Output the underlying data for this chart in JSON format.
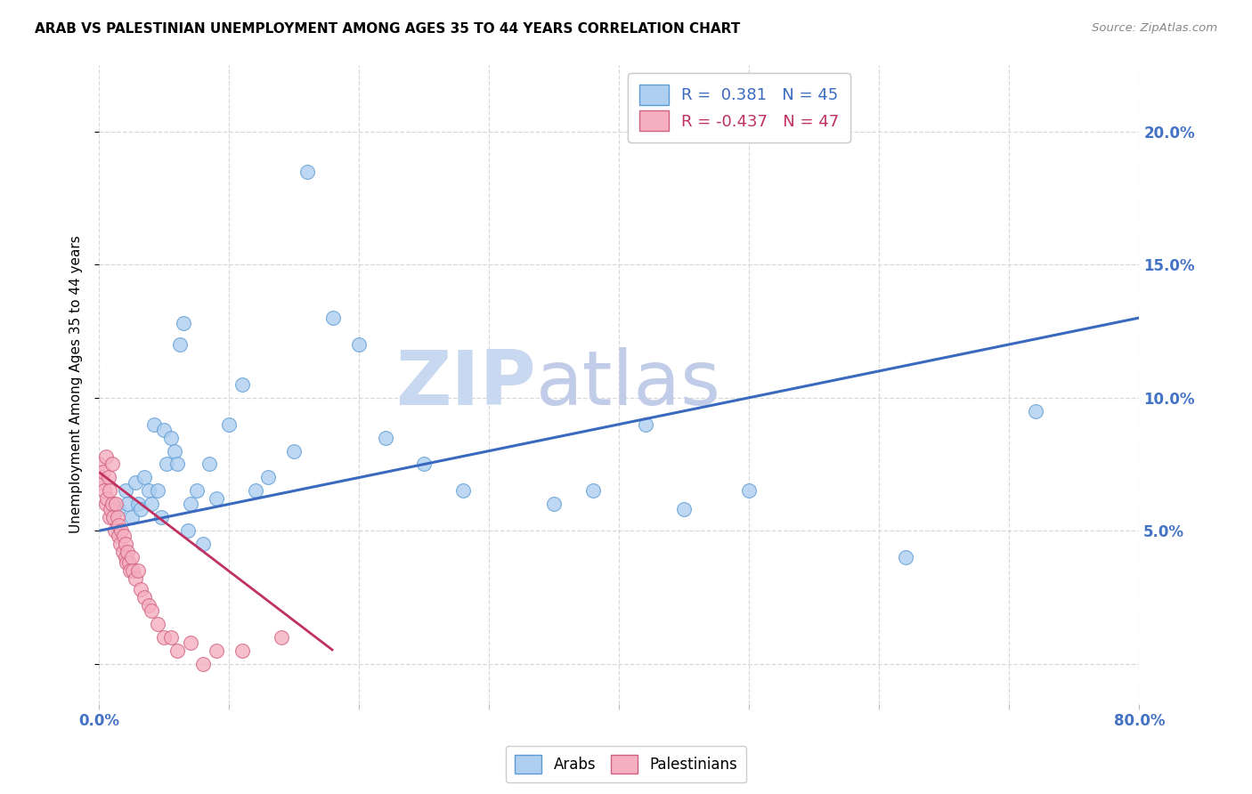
{
  "title": "ARAB VS PALESTINIAN UNEMPLOYMENT AMONG AGES 35 TO 44 YEARS CORRELATION CHART",
  "source": "Source: ZipAtlas.com",
  "ylabel": "Unemployment Among Ages 35 to 44 years",
  "legend_arab": "Arabs",
  "legend_pal": "Palestinians",
  "r_arab": 0.381,
  "n_arab": 45,
  "r_pal": -0.437,
  "n_pal": 47,
  "xlim": [
    0.0,
    0.8
  ],
  "ylim": [
    -0.015,
    0.225
  ],
  "arab_color": "#aecff0",
  "pal_color": "#f5afc0",
  "arab_edge_color": "#5b9bd5",
  "pal_edge_color": "#d06080",
  "arab_line_color": "#3a6abf",
  "pal_line_color": "#c03060",
  "watermark_zip": "ZIP",
  "watermark_atlas": "atlas",
  "background": "#ffffff",
  "grid_color": "#d8d8d8",
  "right_tick_color": "#4472c4",
  "arab_x": [
    0.01,
    0.015,
    0.02,
    0.022,
    0.025,
    0.028,
    0.03,
    0.032,
    0.035,
    0.038,
    0.04,
    0.042,
    0.045,
    0.048,
    0.05,
    0.052,
    0.055,
    0.058,
    0.06,
    0.062,
    0.065,
    0.068,
    0.07,
    0.075,
    0.08,
    0.085,
    0.09,
    0.1,
    0.11,
    0.12,
    0.13,
    0.15,
    0.16,
    0.18,
    0.2,
    0.22,
    0.25,
    0.28,
    0.35,
    0.38,
    0.42,
    0.45,
    0.5,
    0.62,
    0.72
  ],
  "arab_y": [
    0.06,
    0.058,
    0.065,
    0.06,
    0.055,
    0.068,
    0.06,
    0.058,
    0.07,
    0.065,
    0.06,
    0.09,
    0.065,
    0.055,
    0.088,
    0.075,
    0.085,
    0.08,
    0.075,
    0.12,
    0.128,
    0.05,
    0.06,
    0.065,
    0.045,
    0.075,
    0.062,
    0.09,
    0.105,
    0.065,
    0.07,
    0.08,
    0.185,
    0.13,
    0.12,
    0.085,
    0.075,
    0.065,
    0.06,
    0.065,
    0.09,
    0.058,
    0.065,
    0.04,
    0.095
  ],
  "pal_x": [
    0.0,
    0.001,
    0.002,
    0.003,
    0.004,
    0.005,
    0.005,
    0.006,
    0.007,
    0.008,
    0.008,
    0.009,
    0.01,
    0.01,
    0.011,
    0.012,
    0.013,
    0.014,
    0.015,
    0.015,
    0.016,
    0.017,
    0.018,
    0.019,
    0.02,
    0.02,
    0.021,
    0.022,
    0.023,
    0.024,
    0.025,
    0.026,
    0.028,
    0.03,
    0.032,
    0.035,
    0.038,
    0.04,
    0.045,
    0.05,
    0.055,
    0.06,
    0.07,
    0.08,
    0.09,
    0.11,
    0.14
  ],
  "pal_y": [
    0.075,
    0.07,
    0.068,
    0.072,
    0.065,
    0.078,
    0.06,
    0.062,
    0.07,
    0.055,
    0.065,
    0.058,
    0.075,
    0.06,
    0.055,
    0.05,
    0.06,
    0.055,
    0.052,
    0.048,
    0.045,
    0.05,
    0.042,
    0.048,
    0.045,
    0.04,
    0.038,
    0.042,
    0.038,
    0.035,
    0.04,
    0.035,
    0.032,
    0.035,
    0.028,
    0.025,
    0.022,
    0.02,
    0.015,
    0.01,
    0.01,
    0.005,
    0.008,
    0.0,
    0.005,
    0.005,
    0.01
  ],
  "arab_line_x0": 0.0,
  "arab_line_y0": 0.05,
  "arab_line_x1": 0.8,
  "arab_line_y1": 0.13,
  "pal_line_x0": 0.0,
  "pal_line_y0": 0.072,
  "pal_line_x1": 0.18,
  "pal_line_y1": 0.005
}
